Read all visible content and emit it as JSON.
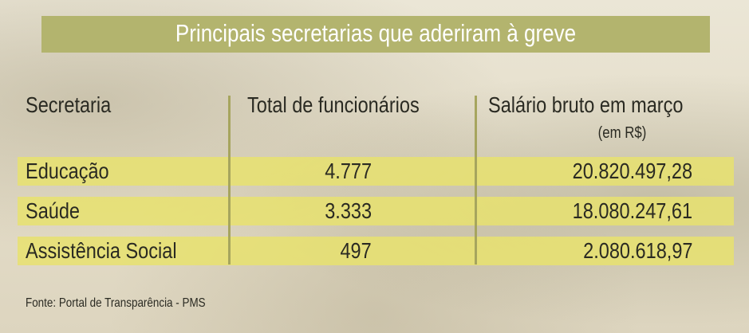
{
  "title": "Principais secretarias que aderiram à greve",
  "table": {
    "headers": [
      "Secretaria",
      "Total de funcionários",
      "Salário bruto em março"
    ],
    "header_note": "(em R$)",
    "rows": [
      [
        "Educação",
        "4.777",
        "20.820.497,28"
      ],
      [
        "Saúde",
        "3.333",
        "18.080.247,61"
      ],
      [
        "Assistência Social",
        "497",
        "2.080.618,97"
      ]
    ]
  },
  "source": "Fonte: Portal de Transparência - PMS"
}
